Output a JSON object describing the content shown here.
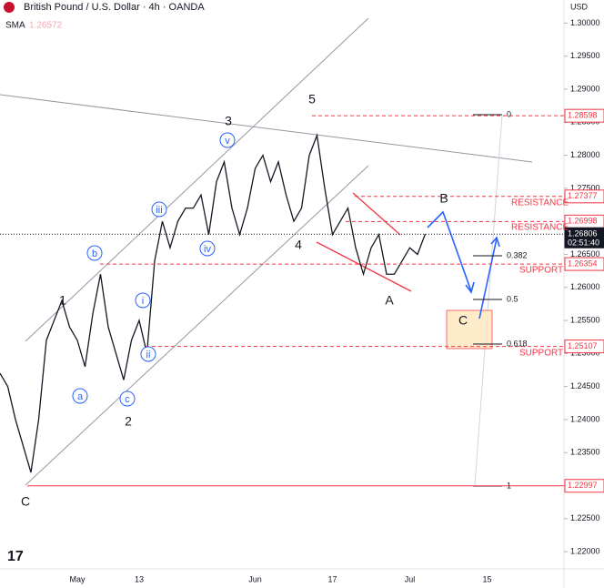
{
  "chart_data": {
    "type": "line",
    "title": "British Pound / U.S. Dollar · 4h · OANDA",
    "indicator": "SMA",
    "indicator_value": "1.26572",
    "currency": "USD",
    "countdown": "02:51:40",
    "color": "#131722",
    "categories": [
      null,
      null,
      null,
      null,
      null,
      null,
      null,
      null,
      null,
      null,
      "May",
      null,
      null,
      null,
      null,
      null,
      null,
      null,
      "13",
      null,
      null,
      null,
      null,
      null,
      null,
      null,
      null,
      null,
      null,
      null,
      null,
      null,
      null,
      "Jun",
      null,
      null,
      null,
      null,
      null,
      null,
      null,
      null,
      null,
      "17",
      null,
      null,
      null,
      null,
      null,
      null,
      null,
      null,
      null,
      "Jul",
      null,
      null,
      null,
      null,
      null,
      null,
      null,
      null,
      null,
      "15",
      null,
      null,
      null,
      null,
      null,
      null,
      null,
      null,
      null
    ],
    "values": [
      1.247,
      1.245,
      1.24,
      1.236,
      1.232,
      1.24,
      1.252,
      1.255,
      1.258,
      1.254,
      1.252,
      1.248,
      1.256,
      1.262,
      1.254,
      1.25,
      1.246,
      1.252,
      1.255,
      1.25,
      1.264,
      1.27,
      1.266,
      1.27,
      1.272,
      1.272,
      1.274,
      1.268,
      1.276,
      1.279,
      1.272,
      1.268,
      1.272,
      1.278,
      1.28,
      1.276,
      1.279,
      1.274,
      1.27,
      1.272,
      1.28,
      1.283,
      1.275,
      1.268,
      1.27,
      1.272,
      1.266,
      1.262,
      1.266,
      1.268,
      1.262,
      1.262,
      1.264,
      1.266,
      1.265,
      1.2681,
      null,
      null,
      null,
      null,
      null,
      null,
      null,
      null,
      null,
      null,
      null,
      null,
      null,
      null,
      null,
      null,
      null
    ],
    "ylim": [
      1.2174,
      1.3035
    ],
    "yticks": [
      {
        "value": 1.22,
        "label": "1.22000"
      },
      {
        "value": 1.225,
        "label": "1.22500"
      },
      {
        "value": 1.23,
        "label": "1.23000"
      },
      {
        "value": 1.235,
        "label": "1.23500"
      },
      {
        "value": 1.24,
        "label": "1.24000"
      },
      {
        "value": 1.245,
        "label": "1.24500"
      },
      {
        "value": 1.25,
        "label": "1.25000"
      },
      {
        "value": 1.255,
        "label": "1.25500"
      },
      {
        "value": 1.26,
        "label": "1.26000"
      },
      {
        "value": 1.265,
        "label": "1.26500"
      },
      {
        "value": 1.27,
        "label": "1.27000"
      },
      {
        "value": 1.275,
        "label": "1.27500"
      },
      {
        "value": 1.28,
        "label": "1.28000"
      },
      {
        "value": 1.285,
        "label": "1.28500"
      },
      {
        "value": 1.29,
        "label": "1.29000"
      },
      {
        "value": 1.295,
        "label": "1.29500"
      },
      {
        "value": 1.3,
        "label": "1.30000"
      }
    ],
    "levels": [
      1.28598,
      1.27377,
      1.26998,
      1.26806,
      1.26354,
      1.25107,
      1.22997
    ],
    "level_color": "#f23645",
    "current_color": "#131722",
    "fib_labels": [
      "0",
      "0.382",
      "0.5",
      "0.618",
      "1"
    ],
    "zone_labels": [
      "RESISTANCE",
      "RESISTANCE",
      "SUPPORT",
      "SUPPORT"
    ],
    "wave_labels": [
      "C",
      "1",
      "2",
      "3",
      "4",
      "5",
      "A",
      "B",
      "C",
      "a",
      "b",
      "c",
      "i",
      "ii",
      "iii",
      "iv",
      "v"
    ]
  }
}
